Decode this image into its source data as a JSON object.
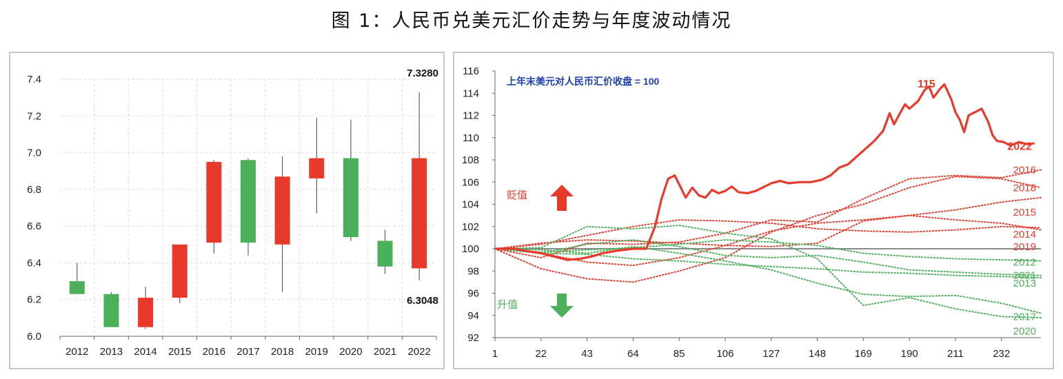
{
  "figure_title": "图 1：人民币兑美元汇价走势与年度波动情况",
  "chart_data": [
    {
      "type": "candlestick",
      "categories": [
        "2012",
        "2013",
        "2014",
        "2015",
        "2016",
        "2017",
        "2018",
        "2019",
        "2020",
        "2021",
        "2022"
      ],
      "series": [
        {
          "open": 6.3,
          "close": 6.23,
          "high": 6.4,
          "low": 6.23,
          "color": "#4caf5a"
        },
        {
          "open": 6.23,
          "close": 6.05,
          "high": 6.24,
          "low": 6.05,
          "color": "#4caf5a"
        },
        {
          "open": 6.05,
          "close": 6.21,
          "high": 6.27,
          "low": 6.04,
          "color": "#e8392a"
        },
        {
          "open": 6.21,
          "close": 6.5,
          "high": 6.5,
          "low": 6.18,
          "color": "#e8392a"
        },
        {
          "open": 6.51,
          "close": 6.95,
          "high": 6.96,
          "low": 6.45,
          "color": "#e8392a"
        },
        {
          "open": 6.96,
          "close": 6.51,
          "high": 6.97,
          "low": 6.44,
          "color": "#4caf5a"
        },
        {
          "open": 6.5,
          "close": 6.87,
          "high": 6.98,
          "low": 6.24,
          "color": "#e8392a"
        },
        {
          "open": 6.86,
          "close": 6.97,
          "high": 7.19,
          "low": 6.67,
          "color": "#e8392a"
        },
        {
          "open": 6.97,
          "close": 6.54,
          "high": 7.18,
          "low": 6.52,
          "color": "#4caf5a"
        },
        {
          "open": 6.52,
          "close": 6.38,
          "high": 6.58,
          "low": 6.34,
          "color": "#4caf5a"
        },
        {
          "open": 6.37,
          "close": 6.97,
          "high": 7.328,
          "low": 6.3048,
          "color": "#e8392a"
        }
      ],
      "yticks": [
        "6.0",
        "6.2",
        "6.4",
        "6.6",
        "6.8",
        "7.0",
        "7.2",
        "7.4"
      ],
      "ylim": [
        6.0,
        7.4
      ],
      "annotations": {
        "high_label": "7.3280",
        "low_label": "6.3048"
      },
      "grid": true
    },
    {
      "type": "line",
      "subtitle": "上年末美元对人民币汇价收盘 = 100",
      "xticks": [
        "1",
        "22",
        "43",
        "64",
        "85",
        "106",
        "127",
        "148",
        "169",
        "190",
        "211",
        "232"
      ],
      "yticks": [
        "92",
        "94",
        "96",
        "98",
        "100",
        "102",
        "104",
        "106",
        "108",
        "110",
        "112",
        "114",
        "116"
      ],
      "xlim": [
        1,
        250
      ],
      "ylim": [
        92,
        116
      ],
      "baseline": 100,
      "arrows": {
        "up_label": "贬值",
        "down_label": "升值"
      },
      "peak_label": "115",
      "series": [
        {
          "name": "2022",
          "color": "#e8392a",
          "style": "solid",
          "points": [
            [
              1,
              100
            ],
            [
              10,
              100
            ],
            [
              15,
              99.8
            ],
            [
              22,
              99.6
            ],
            [
              28,
              99.3
            ],
            [
              34,
              99
            ],
            [
              40,
              99.1
            ],
            [
              45,
              99.3
            ],
            [
              50,
              99.6
            ],
            [
              56,
              99.8
            ],
            [
              64,
              100
            ],
            [
              70,
              100
            ],
            [
              74,
              102
            ],
            [
              77,
              104.5
            ],
            [
              80,
              106.3
            ],
            [
              83,
              106.6
            ],
            [
              86,
              105.4
            ],
            [
              88,
              104.6
            ],
            [
              91,
              105.5
            ],
            [
              94,
              104.8
            ],
            [
              97,
              104.6
            ],
            [
              100,
              105.3
            ],
            [
              103,
              105
            ],
            [
              106,
              105.2
            ],
            [
              109,
              105.6
            ],
            [
              112,
              105.1
            ],
            [
              116,
              105
            ],
            [
              120,
              105.2
            ],
            [
              124,
              105.6
            ],
            [
              127,
              105.9
            ],
            [
              131,
              106.1
            ],
            [
              135,
              105.9
            ],
            [
              140,
              106
            ],
            [
              145,
              106
            ],
            [
              150,
              106.2
            ],
            [
              154,
              106.6
            ],
            [
              158,
              107.3
            ],
            [
              162,
              107.6
            ],
            [
              166,
              108.3
            ],
            [
              170,
              109
            ],
            [
              174,
              109.7
            ],
            [
              178,
              110.6
            ],
            [
              181,
              112.2
            ],
            [
              183,
              111.2
            ],
            [
              186,
              112.3
            ],
            [
              188,
              113
            ],
            [
              190,
              112.6
            ],
            [
              194,
              113.3
            ],
            [
              197,
              114.3
            ],
            [
              199,
              114.6
            ],
            [
              201,
              113.6
            ],
            [
              204,
              114.4
            ],
            [
              206,
              114.8
            ],
            [
              209,
              113.5
            ],
            [
              211,
              112.3
            ],
            [
              213,
              111.6
            ],
            [
              215,
              110.5
            ],
            [
              217,
              112
            ],
            [
              220,
              112.3
            ],
            [
              223,
              112.6
            ],
            [
              226,
              111.4
            ],
            [
              228,
              110.2
            ],
            [
              230,
              109.7
            ],
            [
              233,
              109.6
            ],
            [
              236,
              109.3
            ],
            [
              240,
              109.6
            ],
            [
              244,
              109.4
            ],
            [
              247,
              109.5
            ]
          ]
        },
        {
          "name": "2016",
          "color": "#e8392a",
          "style": "dotted",
          "points": [
            [
              1,
              100
            ],
            [
              22,
              99.2
            ],
            [
              43,
              100.5
            ],
            [
              64,
              100.4
            ],
            [
              85,
              100.6
            ],
            [
              106,
              101.4
            ],
            [
              127,
              102.6
            ],
            [
              148,
              102.4
            ],
            [
              169,
              104.5
            ],
            [
              190,
              106.3
            ],
            [
              211,
              106.6
            ],
            [
              232,
              106.4
            ],
            [
              250,
              107.1
            ]
          ]
        },
        {
          "name": "2018",
          "color": "#e8392a",
          "style": "dotted",
          "points": [
            [
              1,
              100
            ],
            [
              22,
              98.2
            ],
            [
              43,
              97.3
            ],
            [
              64,
              97
            ],
            [
              85,
              98
            ],
            [
              106,
              99.2
            ],
            [
              127,
              101.5
            ],
            [
              148,
              103
            ],
            [
              169,
              104
            ],
            [
              190,
              105.5
            ],
            [
              211,
              106.5
            ],
            [
              232,
              106.3
            ],
            [
              250,
              105.5
            ]
          ]
        },
        {
          "name": "2015",
          "color": "#e8392a",
          "style": "dotted",
          "points": [
            [
              1,
              100
            ],
            [
              22,
              100.5
            ],
            [
              43,
              100.8
            ],
            [
              64,
              100.7
            ],
            [
              85,
              100.5
            ],
            [
              106,
              100.3
            ],
            [
              127,
              100.2
            ],
            [
              148,
              100.5
            ],
            [
              169,
              102.5
            ],
            [
              190,
              103
            ],
            [
              211,
              103.5
            ],
            [
              232,
              104.2
            ],
            [
              250,
              104.6
            ]
          ]
        },
        {
          "name": "2014",
          "color": "#e8392a",
          "style": "dotted",
          "points": [
            [
              1,
              100
            ],
            [
              22,
              100.4
            ],
            [
              43,
              101.2
            ],
            [
              64,
              102
            ],
            [
              85,
              102.6
            ],
            [
              106,
              102.5
            ],
            [
              127,
              102.3
            ],
            [
              148,
              101.8
            ],
            [
              169,
              101.6
            ],
            [
              190,
              101.5
            ],
            [
              211,
              101.7
            ],
            [
              232,
              102
            ],
            [
              250,
              101.9
            ]
          ]
        },
        {
          "name": "2019",
          "color": "#e8392a",
          "style": "dotted",
          "points": [
            [
              1,
              100
            ],
            [
              22,
              99.6
            ],
            [
              43,
              98.8
            ],
            [
              64,
              98.5
            ],
            [
              85,
              99.2
            ],
            [
              106,
              100.3
            ],
            [
              127,
              101.6
            ],
            [
              148,
              102.3
            ],
            [
              169,
              102.6
            ],
            [
              190,
              103
            ],
            [
              211,
              102.6
            ],
            [
              232,
              102.3
            ],
            [
              250,
              101.7
            ]
          ]
        },
        {
          "name": "2012",
          "color": "#4caf5a",
          "style": "dotted",
          "points": [
            [
              1,
              100
            ],
            [
              22,
              99.7
            ],
            [
              43,
              99.9
            ],
            [
              64,
              100.1
            ],
            [
              85,
              100.4
            ],
            [
              106,
              100.8
            ],
            [
              127,
              100.6
            ],
            [
              148,
              100.3
            ],
            [
              169,
              99.6
            ],
            [
              190,
              99.3
            ],
            [
              211,
              99.1
            ],
            [
              232,
              99
            ],
            [
              250,
              98.9
            ]
          ]
        },
        {
          "name": "2021",
          "color": "#4caf5a",
          "style": "dotted",
          "points": [
            [
              1,
              100
            ],
            [
              22,
              99.6
            ],
            [
              43,
              100.4
            ],
            [
              64,
              100.8
            ],
            [
              85,
              100.2
            ],
            [
              106,
              99.4
            ],
            [
              127,
              99.2
            ],
            [
              148,
              99.4
            ],
            [
              169,
              98.8
            ],
            [
              190,
              98.1
            ],
            [
              211,
              97.9
            ],
            [
              232,
              97.7
            ],
            [
              250,
              97.6
            ]
          ]
        },
        {
          "name": "2013",
          "color": "#4caf5a",
          "style": "dotted",
          "points": [
            [
              1,
              100
            ],
            [
              22,
              99.6
            ],
            [
              43,
              99.5
            ],
            [
              64,
              99.1
            ],
            [
              85,
              98.9
            ],
            [
              106,
              98.6
            ],
            [
              127,
              98.4
            ],
            [
              148,
              98.2
            ],
            [
              169,
              97.9
            ],
            [
              190,
              97.8
            ],
            [
              211,
              97.6
            ],
            [
              232,
              97.5
            ],
            [
              250,
              97.4
            ]
          ]
        },
        {
          "name": "2017",
          "color": "#4caf5a",
          "style": "dotted",
          "points": [
            [
              1,
              100
            ],
            [
              22,
              99.9
            ],
            [
              43,
              99.6
            ],
            [
              64,
              100.2
            ],
            [
              85,
              99.6
            ],
            [
              106,
              98.9
            ],
            [
              127,
              98.1
            ],
            [
              148,
              96.9
            ],
            [
              169,
              95.9
            ],
            [
              190,
              95.7
            ],
            [
              211,
              95.8
            ],
            [
              232,
              95.1
            ],
            [
              250,
              94.2
            ]
          ]
        },
        {
          "name": "2020",
          "color": "#4caf5a",
          "style": "dotted",
          "points": [
            [
              1,
              100
            ],
            [
              22,
              100.1
            ],
            [
              43,
              102
            ],
            [
              64,
              101.8
            ],
            [
              85,
              102.1
            ],
            [
              106,
              101.4
            ],
            [
              127,
              100.9
            ],
            [
              148,
              99.1
            ],
            [
              169,
              94.9
            ],
            [
              190,
              95.6
            ],
            [
              211,
              94.6
            ],
            [
              232,
              93.9
            ],
            [
              250,
              93.8
            ]
          ]
        }
      ]
    }
  ]
}
